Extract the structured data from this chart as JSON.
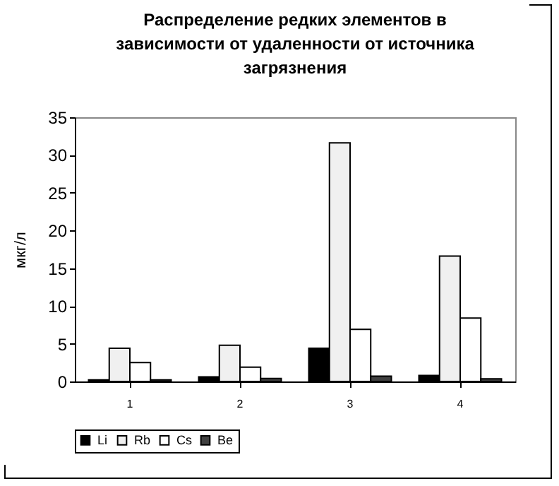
{
  "chart_data": {
    "type": "bar",
    "title": [
      "Распределение редких элементов  в",
      "зависимости от удаленности от источника",
      "загрязнения"
    ],
    "ylabel": "мкг/л",
    "categories": [
      "1",
      "2",
      "3",
      "4"
    ],
    "series": [
      {
        "name": "Li",
        "color": "#000000",
        "values": [
          0.2,
          0.6,
          4.4,
          0.8
        ]
      },
      {
        "name": "Rb",
        "color": "#f0f0f0",
        "values": [
          4.4,
          4.8,
          31.6,
          16.6
        ]
      },
      {
        "name": "Cs",
        "color": "#ffffff",
        "values": [
          2.5,
          1.9,
          6.9,
          8.4
        ]
      },
      {
        "name": "Be",
        "color": "#404040",
        "values": [
          0.2,
          0.4,
          0.7,
          0.35
        ]
      }
    ],
    "ylim": [
      0,
      35
    ],
    "yticks": [
      0,
      5,
      10,
      15,
      20,
      25,
      30,
      35
    ],
    "grid": false,
    "legend": "bottom"
  }
}
